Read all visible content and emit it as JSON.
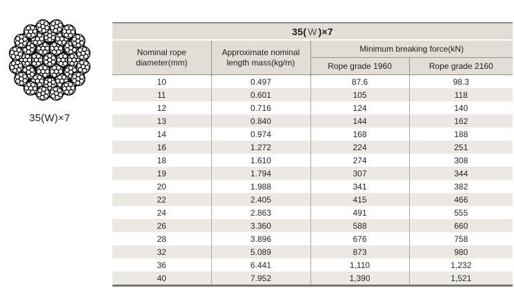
{
  "figure": {
    "caption": "35(W)×7",
    "icon": "wire-rope-cross-section-diagram"
  },
  "table": {
    "title": {
      "pre": "35(",
      "mid": "W",
      "post": ")×7"
    },
    "headers": {
      "col_diameter": {
        "line1": "Nominal rope",
        "line2": "diameter(mm)"
      },
      "col_mass": {
        "line1": "Approximate nominal",
        "line2": "length mass(kg/m)"
      },
      "group_breaking_force": "Minimum breaking force(kN)",
      "col_grade_1960": "Rope grade 1960",
      "col_grade_2160": "Rope grade 2160"
    },
    "rows": [
      {
        "diameter": "10",
        "mass": "0.497",
        "grade1960": "87.6",
        "grade2160": "98.3"
      },
      {
        "diameter": "11",
        "mass": "0.601",
        "grade1960": "105",
        "grade2160": "118"
      },
      {
        "diameter": "12",
        "mass": "0.716",
        "grade1960": "124",
        "grade2160": "140"
      },
      {
        "diameter": "13",
        "mass": "0.840",
        "grade1960": "144",
        "grade2160": "162"
      },
      {
        "diameter": "14",
        "mass": "0.974",
        "grade1960": "168",
        "grade2160": "188"
      },
      {
        "diameter": "16",
        "mass": "1.272",
        "grade1960": "224",
        "grade2160": "251"
      },
      {
        "diameter": "18",
        "mass": "1.610",
        "grade1960": "274",
        "grade2160": "308"
      },
      {
        "diameter": "19",
        "mass": "1.794",
        "grade1960": "307",
        "grade2160": "344"
      },
      {
        "diameter": "20",
        "mass": "1.988",
        "grade1960": "341",
        "grade2160": "382"
      },
      {
        "diameter": "22",
        "mass": "2.405",
        "grade1960": "415",
        "grade2160": "466"
      },
      {
        "diameter": "24",
        "mass": "2.863",
        "grade1960": "491",
        "grade2160": "555"
      },
      {
        "diameter": "26",
        "mass": "3.360",
        "grade1960": "588",
        "grade2160": "660"
      },
      {
        "diameter": "28",
        "mass": "3.896",
        "grade1960": "676",
        "grade2160": "758"
      },
      {
        "diameter": "32",
        "mass": "5.089",
        "grade1960": "873",
        "grade2160": "980"
      },
      {
        "diameter": "36",
        "mass": "6.441",
        "grade1960": "1,110",
        "grade2160": "1,232"
      },
      {
        "diameter": "40",
        "mass": "7.952",
        "grade1960": "1,390",
        "grade2160": "1,521"
      }
    ]
  },
  "colors": {
    "header_bg": "#e2ddd6",
    "row_alt_bg": "#ece9e5",
    "border_top": "#8f8b86",
    "border_bottom": "#767472",
    "divider": "#a9a6a1",
    "rope_ink": "#141414",
    "text": "#262626"
  }
}
